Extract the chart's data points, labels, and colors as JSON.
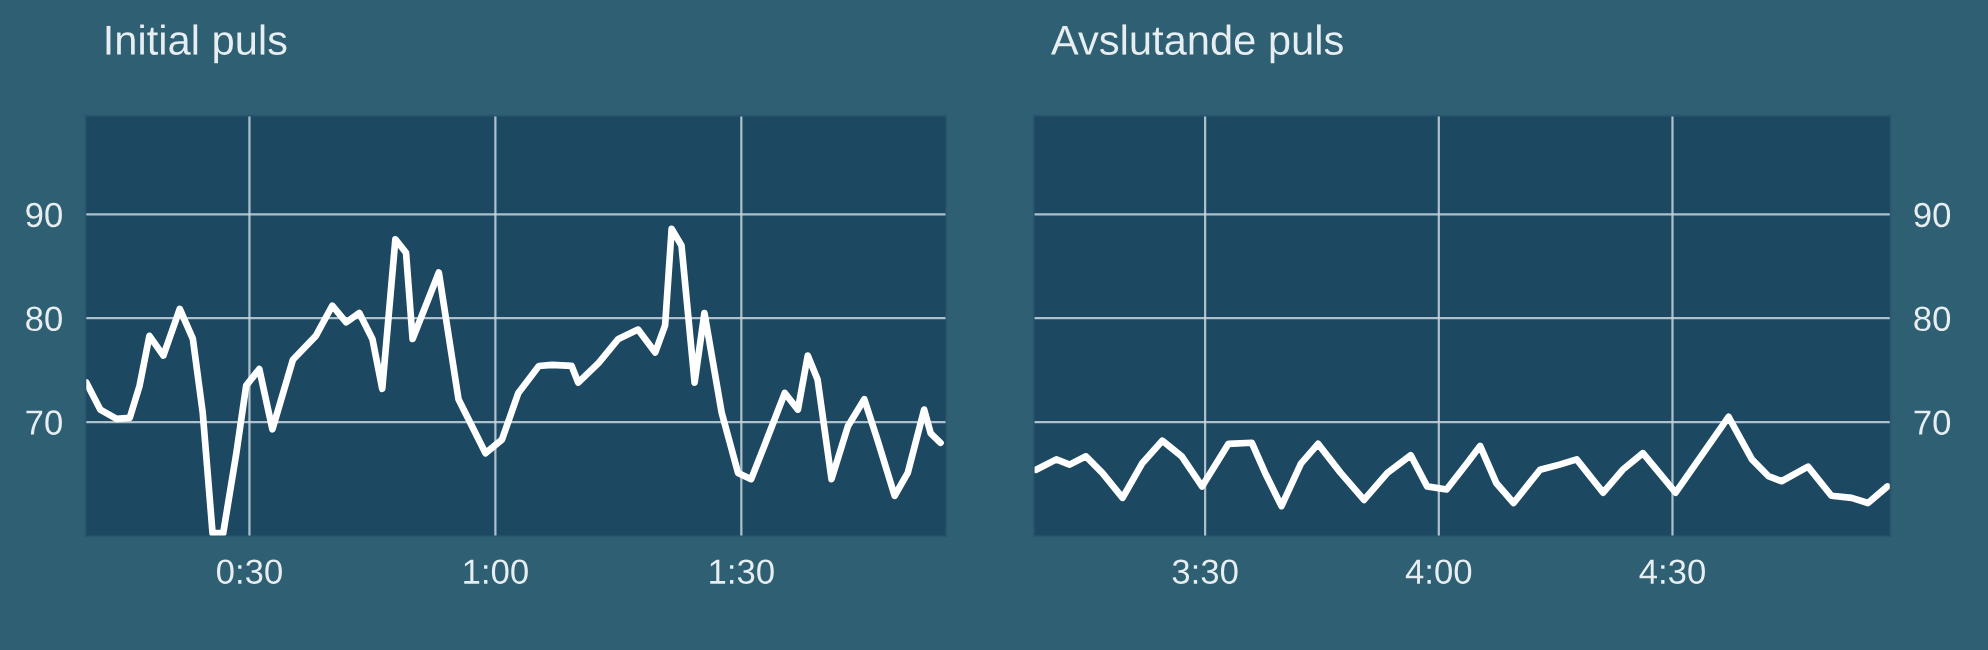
{
  "chart_data": [
    {
      "type": "line",
      "title": "Initial puls",
      "grid": true,
      "line_style": "solid",
      "marker": "none",
      "xlim": [
        10,
        115
      ],
      "xticks": [
        {
          "value": 30,
          "label": "0:30"
        },
        {
          "value": 60,
          "label": "1:00"
        },
        {
          "value": 90,
          "label": "1:30"
        }
      ],
      "ylim": [
        59,
        99.5
      ],
      "yticks": [
        70,
        80,
        90
      ],
      "series": [
        {
          "color": "#ffffff",
          "x": [
            10.1,
            11.8,
            13.8,
            15.4,
            16.6,
            17.8,
            19.5,
            21.5,
            23.1,
            24.3,
            25.5,
            26.8,
            28.4,
            29.6,
            31.2,
            32.8,
            35.3,
            38.1,
            40.1,
            41.8,
            43.4,
            45.0,
            46.2,
            47.8,
            49.1,
            49.9,
            53.1,
            55.5,
            58.8,
            60.8,
            62.8,
            65.3,
            66.9,
            69.3,
            70.1,
            72.6,
            75.0,
            77.4,
            79.5,
            80.7,
            81.5,
            82.7,
            84.3,
            85.5,
            87.6,
            89.6,
            91.2,
            92.8,
            95.3,
            96.9,
            98.1,
            99.3,
            101.0,
            103.0,
            105.0,
            106.6,
            108.7,
            110.3,
            112.3,
            113.1,
            114.3
          ],
          "values": [
            73.8,
            71.2,
            70.3,
            70.4,
            73.5,
            78.3,
            76.4,
            80.9,
            78.0,
            70.9,
            59.3,
            59.3,
            67.0,
            73.5,
            75.1,
            69.3,
            76.0,
            78.3,
            81.2,
            79.6,
            80.5,
            78.0,
            73.2,
            87.6,
            86.3,
            78.0,
            84.4,
            72.2,
            67.0,
            68.3,
            72.8,
            75.4,
            75.5,
            75.4,
            73.8,
            75.7,
            78.0,
            78.9,
            76.7,
            79.3,
            88.6,
            87.0,
            73.8,
            80.5,
            70.9,
            65.1,
            64.5,
            67.7,
            72.8,
            71.2,
            76.4,
            74.1,
            64.5,
            69.6,
            72.2,
            68.3,
            62.9,
            65.1,
            71.2,
            68.9,
            68.0
          ]
        }
      ]
    },
    {
      "type": "line",
      "title": "Avslutande puls",
      "grid": true,
      "line_style": "solid",
      "marker": "none",
      "xlim": [
        188,
        298
      ],
      "xticks": [
        {
          "value": 210,
          "label": "3:30"
        },
        {
          "value": 240,
          "label": "4:00"
        },
        {
          "value": 270,
          "label": "4:30"
        }
      ],
      "y2lim": [
        59,
        99.5
      ],
      "y2ticks": [
        70,
        80,
        90
      ],
      "series": [
        {
          "color": "#ffffff",
          "axis": "y2",
          "x": [
            188.3,
            190.9,
            192.6,
            194.7,
            196.8,
            199.4,
            201.9,
            204.5,
            207.0,
            209.6,
            213.0,
            216.0,
            217.7,
            219.8,
            222.3,
            224.5,
            227.4,
            230.4,
            233.4,
            236.4,
            238.5,
            241.0,
            243.6,
            245.3,
            247.4,
            249.6,
            253.0,
            255.5,
            257.7,
            261.1,
            263.6,
            266.2,
            268.3,
            270.4,
            273.0,
            277.2,
            280.2,
            282.3,
            284.0,
            287.4,
            290.4,
            293.0,
            295.1,
            297.6
          ],
          "values": [
            65.4,
            66.4,
            65.9,
            66.7,
            65.1,
            62.7,
            66.0,
            68.2,
            66.7,
            63.8,
            67.9,
            68.0,
            65.1,
            61.9,
            66.0,
            67.9,
            65.1,
            62.5,
            65.1,
            66.8,
            63.8,
            63.5,
            66.0,
            67.7,
            64.1,
            62.2,
            65.4,
            65.9,
            66.4,
            63.2,
            65.4,
            67.0,
            65.1,
            63.2,
            66.0,
            70.5,
            66.4,
            64.8,
            64.3,
            65.7,
            62.9,
            62.7,
            62.2,
            63.8
          ]
        }
      ]
    }
  ]
}
